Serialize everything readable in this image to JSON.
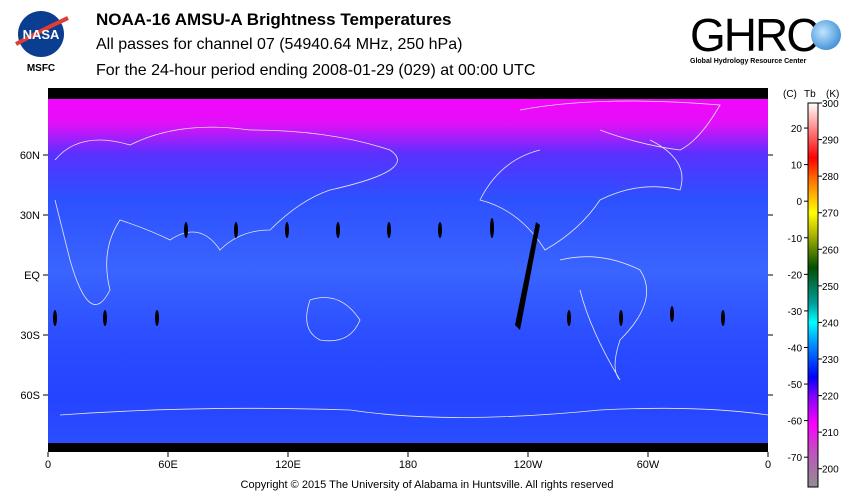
{
  "header": {
    "title": "NOAA-16 AMSU-A Brightness Temperatures",
    "subtitle": "All passes for channel 07 (54940.64 MHz, 250 hPa)",
    "period": "For the 24-hour period ending 2008-01-29 (029) at 00:00 UTC",
    "left_logo": "NASA",
    "left_logo_caption": "MSFC",
    "right_logo": "GHRC",
    "right_logo_caption": "Global Hydrology Resource Center"
  },
  "copyright": "Copyright © 2015 The University of Alabama in Huntsville.  All rights reserved",
  "chart_data": {
    "type": "heatmap",
    "title": "NOAA-16 AMSU-A Brightness Temperatures",
    "x_ticks": [
      "0",
      "60E",
      "120E",
      "180",
      "120W",
      "60W",
      "0"
    ],
    "y_ticks": [
      "60N",
      "30N",
      "EQ",
      "30S",
      "60S"
    ],
    "colorbar": {
      "header_c": "(C)",
      "header_tb": "Tb",
      "header_k": "(K)",
      "kelvin_ticks": [
        300,
        290,
        280,
        270,
        260,
        250,
        240,
        230,
        220,
        210,
        200
      ],
      "celsius_ticks": [
        20,
        10,
        0,
        -10,
        -20,
        -30,
        -40,
        -50,
        -60,
        -70
      ],
      "range_k": [
        195,
        300
      ],
      "stops": [
        {
          "k": 195,
          "c": "#909090"
        },
        {
          "k": 205,
          "c": "#c050c0"
        },
        {
          "k": 212,
          "c": "#ff00ff"
        },
        {
          "k": 220,
          "c": "#8000ff"
        },
        {
          "k": 225,
          "c": "#0000ff"
        },
        {
          "k": 235,
          "c": "#00a0ff"
        },
        {
          "k": 240,
          "c": "#00ffff"
        },
        {
          "k": 245,
          "c": "#00a0a0"
        },
        {
          "k": 255,
          "c": "#005000"
        },
        {
          "k": 265,
          "c": "#c0c000"
        },
        {
          "k": 270,
          "c": "#ffff00"
        },
        {
          "k": 280,
          "c": "#ff6000"
        },
        {
          "k": 285,
          "c": "#ff0000"
        },
        {
          "k": 300,
          "c": "#ffffff"
        }
      ]
    },
    "field_summary_k": {
      "north_polar": 212,
      "midlatitudes": 225,
      "tropics": 230,
      "south_polar": 226
    }
  }
}
